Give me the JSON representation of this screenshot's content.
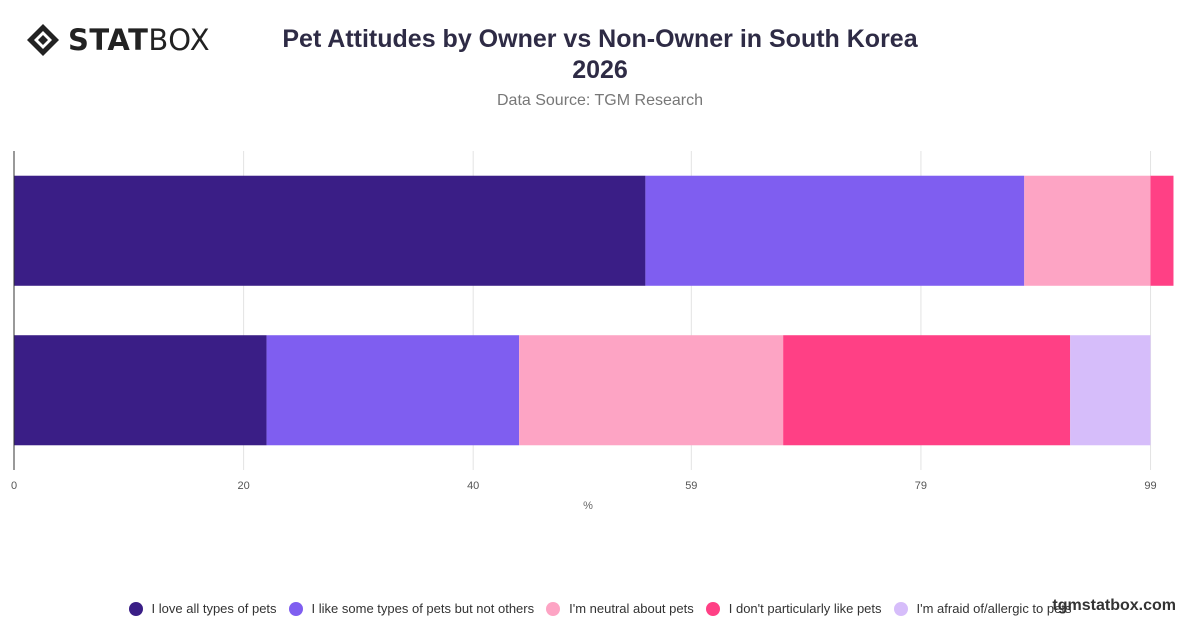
{
  "brand": {
    "logo_bold": "STAT",
    "logo_light": "BOX",
    "watermark": "tgmstatbox.com"
  },
  "chart_data": {
    "type": "bar",
    "orientation": "horizontal",
    "stacked": true,
    "title_line1": "Pet Attitudes by Owner vs Non-Owner in South Korea",
    "title_line2": "2026",
    "subtitle": "Data Source: TGM Research",
    "xlabel": "%",
    "ylabel": "",
    "xlim": [
      0,
      100
    ],
    "xticks": [
      0,
      20,
      40,
      59,
      79,
      99
    ],
    "grid": true,
    "legend_position": "bottom",
    "categories": [
      "",
      ""
    ],
    "series": [
      {
        "name": "I love all types of pets",
        "color": "#3a1e86",
        "values": [
          55,
          22
        ]
      },
      {
        "name": "I like some types of pets but not others",
        "color": "#7f5ef0",
        "values": [
          33,
          22
        ]
      },
      {
        "name": "I'm neutral about pets",
        "color": "#fda4c4",
        "values": [
          11,
          23
        ]
      },
      {
        "name": "I don't particularly like pets",
        "color": "#ff4085",
        "values": [
          2,
          25
        ]
      },
      {
        "name": "I'm afraid of/allergic to pets",
        "color": "#d6bdfa",
        "values": [
          0,
          7
        ]
      }
    ]
  }
}
